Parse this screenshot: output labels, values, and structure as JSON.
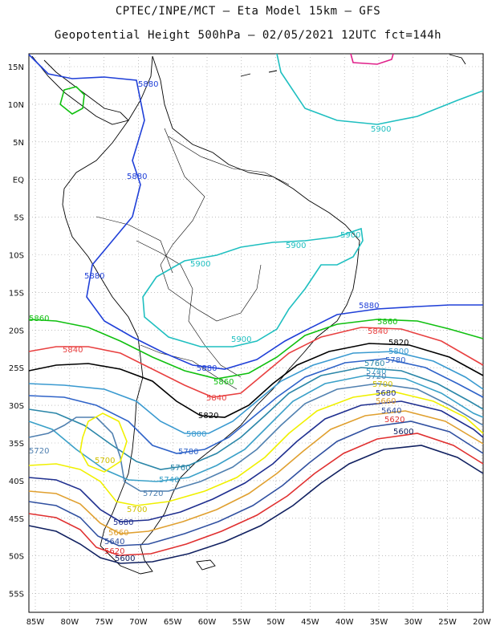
{
  "header": {
    "line1": "CPTEC/INPE/MCT –  Eta Model 15km – GFS",
    "line2": "Geopotential Height 500hPa – 02/05/2021 12UTC fct=144h"
  },
  "axes": {
    "lat_labels": [
      "15N",
      "10N",
      "5N",
      "EQ",
      "5S",
      "10S",
      "15S",
      "20S",
      "25S",
      "30S",
      "35S",
      "40S",
      "45S",
      "50S",
      "55S"
    ],
    "lon_labels": [
      "85W",
      "80W",
      "75W",
      "70W",
      "65W",
      "60W",
      "55W",
      "50W",
      "45W",
      "40W",
      "35W",
      "30W",
      "25W",
      "20W"
    ]
  },
  "colors": {
    "5900": "#1fbfc0",
    "5880": "#2040d8",
    "5860": "#10c010",
    "5840": "#e84040",
    "5820": "#000000",
    "5800": "#3a9ad0",
    "5780": "#2f63c8",
    "5760": "#2a86a8",
    "5740": "#3aa0c8",
    "5720": "#5080b0",
    "5700": "#f0f000",
    "5680": "#1f2f8f",
    "5660": "#e0a030",
    "5640": "#3050a0",
    "5620": "#e03030",
    "5600": "#102060",
    "5920": "#e0208a",
    "5820_box": "#ffffff"
  },
  "contour_labels": {
    "c5900": "5900",
    "c5880": "5880",
    "c5860": "5860",
    "c5840": "5840",
    "c5820": "5820",
    "c5800": "5800",
    "c5780": "5780",
    "c5760": "5760",
    "c5740": "5740",
    "c5720": "5720",
    "c5700": "5700",
    "c5680": "5680",
    "c5660": "5660",
    "c5640": "5640",
    "c5620": "5620",
    "c5600": "5600"
  }
}
